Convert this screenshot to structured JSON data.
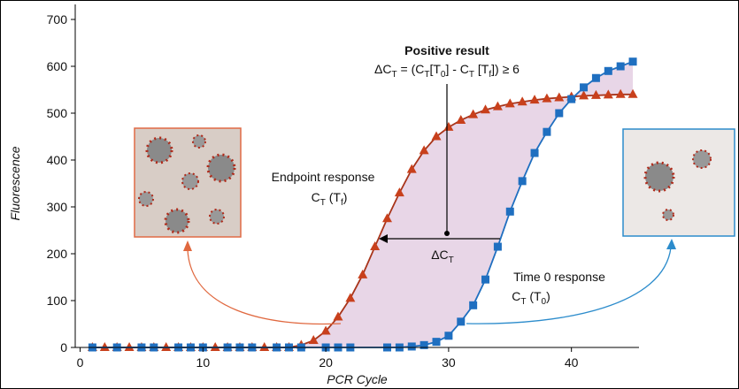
{
  "chart_data": {
    "type": "line",
    "xlabel": "PCR Cycle",
    "ylabel": "Fluorescence",
    "xlim": [
      -0.4,
      45.5
    ],
    "ylim": [
      0,
      700
    ],
    "xticks": [
      0,
      10,
      20,
      30,
      40
    ],
    "yticks": [
      0,
      100,
      200,
      300,
      400,
      500,
      600,
      700
    ],
    "series": [
      {
        "color": "#c8401c",
        "line_color": "#a8341a",
        "marker": "triangle",
        "x": [
          1,
          2,
          3,
          4,
          5,
          6,
          7,
          8,
          9,
          10,
          11,
          12,
          13,
          14,
          15,
          16,
          17,
          18,
          19,
          20,
          21,
          22,
          23,
          24,
          25,
          26,
          27,
          28,
          29,
          30,
          31,
          32,
          33,
          34,
          35,
          36,
          37,
          38,
          39,
          40,
          41,
          42,
          43,
          44,
          45
        ],
        "values": [
          0,
          0,
          0,
          0,
          0,
          0,
          0,
          0,
          0,
          0,
          0,
          0,
          0,
          0,
          0,
          0,
          0,
          5,
          15,
          35,
          65,
          105,
          155,
          215,
          275,
          330,
          380,
          420,
          450,
          470,
          485,
          497,
          507,
          514,
          520,
          524,
          528,
          531,
          533,
          535,
          537,
          538,
          539,
          540,
          540
        ]
      },
      {
        "color": "#1f6fc0",
        "line_color": "#1f6fc0",
        "marker": "square",
        "x": [
          1,
          3,
          5,
          6,
          8,
          9,
          10,
          12,
          13,
          14,
          16,
          17,
          18,
          20,
          21,
          22,
          25,
          26,
          27,
          28,
          29,
          30,
          31,
          32,
          33,
          34,
          35,
          36,
          37,
          38,
          39,
          40,
          41,
          42,
          43,
          44,
          45
        ],
        "values": [
          0,
          0,
          0,
          0,
          0,
          0,
          0,
          0,
          0,
          0,
          0,
          0,
          0,
          0,
          0,
          0,
          0,
          0,
          2,
          5,
          12,
          25,
          55,
          90,
          145,
          215,
          290,
          355,
          415,
          460,
          500,
          530,
          555,
          575,
          590,
          600,
          610
        ]
      }
    ],
    "annotations": {
      "positive_title": "Positive result",
      "formula": [
        "ΔC",
        "T",
        " = (C",
        "T",
        "[T",
        "0",
        "] - C",
        "T",
        " [T",
        "f",
        "]) ≥ 6"
      ],
      "endpoint_title": "Endpoint response",
      "endpoint_ct": [
        "C",
        "T",
        " (T",
        "f",
        ")"
      ],
      "delta": [
        "ΔC",
        "T"
      ],
      "time0_title": "Time 0 response",
      "time0_ct": [
        "C",
        "T",
        " (T",
        "0",
        ")"
      ]
    }
  }
}
